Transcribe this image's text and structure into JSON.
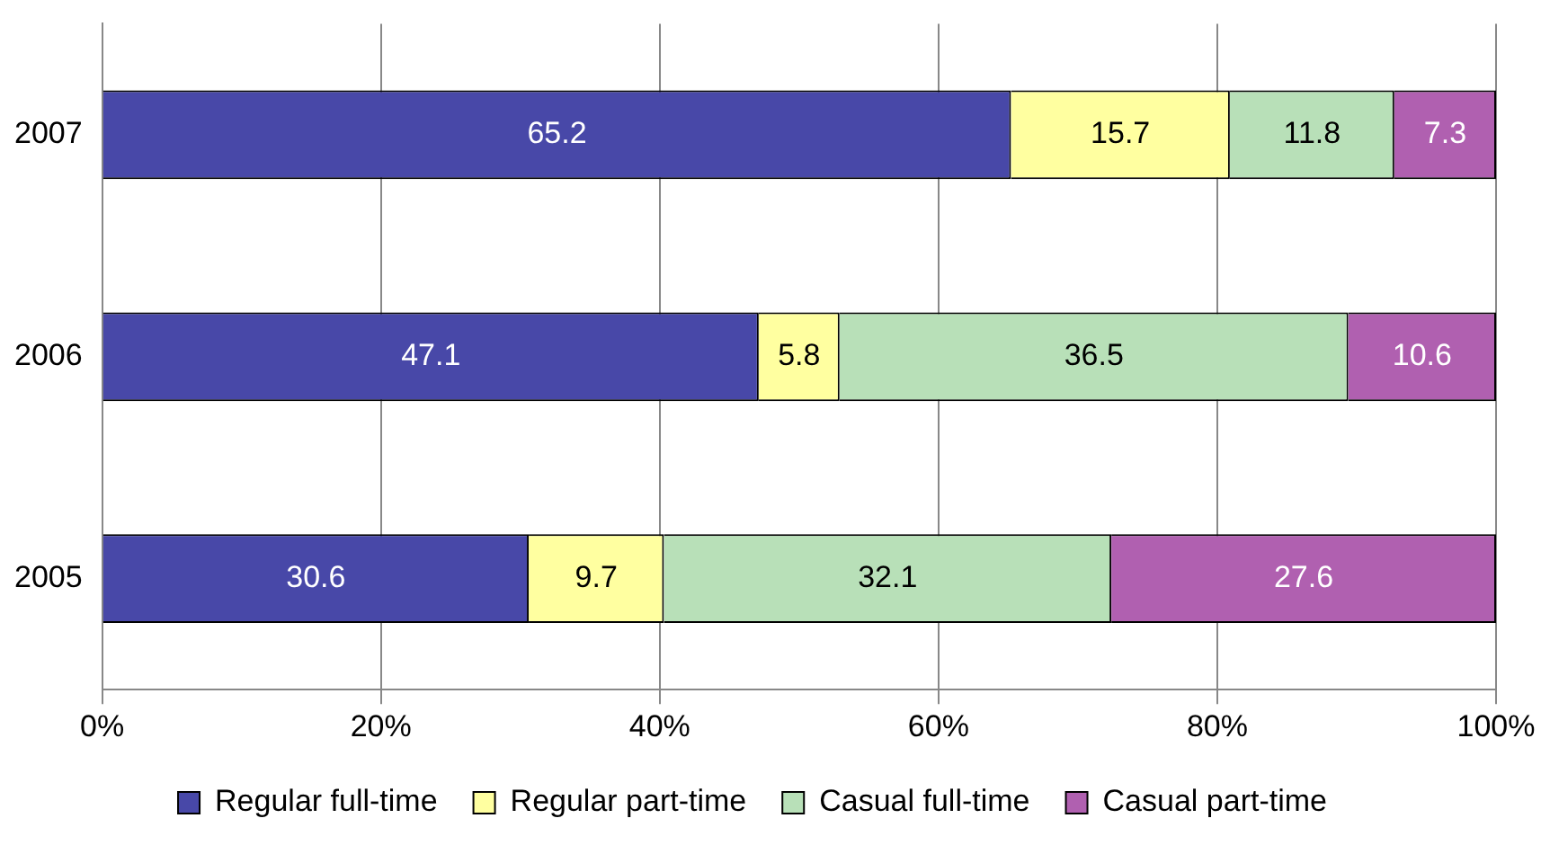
{
  "chart_data": {
    "type": "bar",
    "orientation": "horizontal",
    "stacked": true,
    "categories": [
      "2007",
      "2006",
      "2005"
    ],
    "series": [
      {
        "name": "Regular full-time",
        "color": "#4848a8",
        "values": [
          65.2,
          47.1,
          30.6
        ]
      },
      {
        "name": "Regular part-time",
        "color": "#ffffa0",
        "values": [
          15.7,
          5.8,
          9.7
        ]
      },
      {
        "name": "Casual full-time",
        "color": "#b8e0b8",
        "values": [
          11.8,
          36.5,
          32.1
        ]
      },
      {
        "name": "Casual part-time",
        "color": "#b060b0",
        "values": [
          7.3,
          10.6,
          27.6
        ]
      }
    ],
    "xlim": [
      0,
      100
    ],
    "xticks": [
      {
        "value": 0,
        "label": "0%"
      },
      {
        "value": 20,
        "label": "20%"
      },
      {
        "value": 40,
        "label": "40%"
      },
      {
        "value": 60,
        "label": "60%"
      },
      {
        "value": 80,
        "label": "80%"
      },
      {
        "value": 100,
        "label": "100%"
      }
    ],
    "grid": "x",
    "legend": "bottom",
    "data_labels": true
  }
}
